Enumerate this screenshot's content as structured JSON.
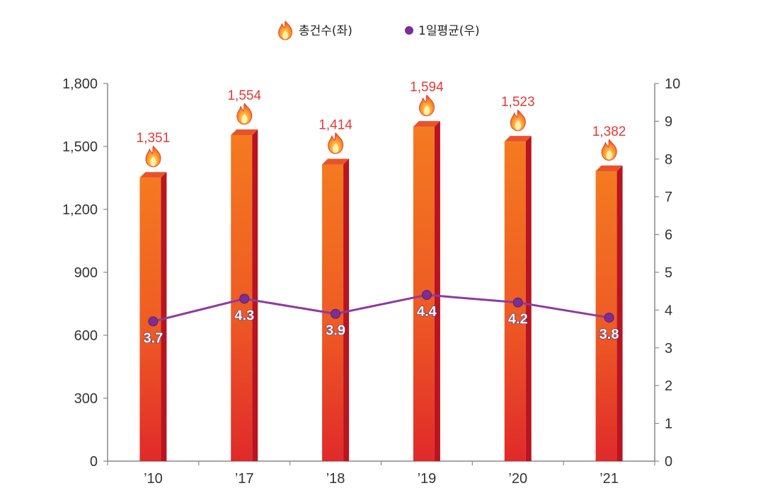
{
  "chart_data": {
    "type": "bar",
    "categories": [
      "’10",
      "’17",
      "’18",
      "’19",
      "’20",
      "’21"
    ],
    "series": [
      {
        "name": "총건수(좌)",
        "type": "bar",
        "axis": "left",
        "values": [
          1351,
          1554,
          1414,
          1594,
          1523,
          1382
        ],
        "labels": [
          "1,351",
          "1,554",
          "1,414",
          "1,594",
          "1,523",
          "1,382"
        ]
      },
      {
        "name": "1일평균(우)",
        "type": "line",
        "axis": "right",
        "values": [
          3.7,
          4.3,
          3.9,
          4.4,
          4.2,
          3.8
        ],
        "labels": [
          "3.7",
          "4.3",
          "3.9",
          "4.4",
          "4.2",
          "3.8"
        ]
      }
    ],
    "y_left": {
      "ylim": [
        0,
        1800
      ],
      "ticks": [
        0,
        300,
        600,
        900,
        1200,
        1500,
        1800
      ],
      "tick_labels": [
        "0",
        "300",
        "600",
        "900",
        "1,200",
        "1,500",
        "1,800"
      ]
    },
    "y_right": {
      "ylim": [
        0,
        10
      ],
      "ticks": [
        0,
        1,
        2,
        3,
        4,
        5,
        6,
        7,
        8,
        9,
        10
      ],
      "tick_labels": [
        "0",
        "1",
        "2",
        "3",
        "4",
        "5",
        "6",
        "7",
        "8",
        "9",
        "10"
      ]
    },
    "legend": {
      "placement": "top-center",
      "icons": [
        "fire-icon",
        "purple-dot"
      ]
    },
    "grid": false,
    "colors": {
      "bar_top": "#f47a20",
      "bar_mid": "#ee5a24",
      "bar_bottom": "#e02a2a",
      "bar_side": "#b9141f",
      "bar_cap": "#e8542a",
      "bar_label": "#e53935",
      "line": "#8e3aa0",
      "marker": "#7b2e93",
      "avg_label_fill": "#ffffff",
      "avg_label_stroke": "#3a2a7a",
      "axis": "#888888"
    }
  }
}
